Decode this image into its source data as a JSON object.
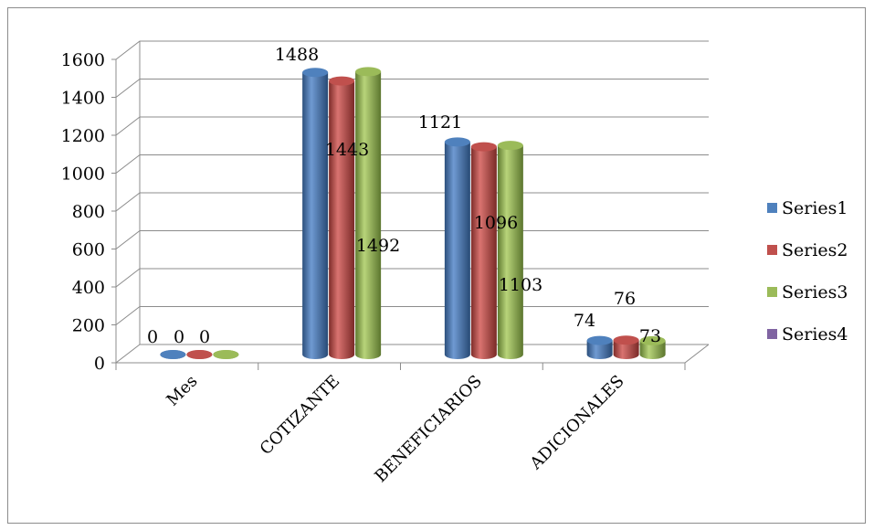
{
  "chart_data": {
    "type": "bar",
    "title": "",
    "xlabel": "",
    "ylabel": "",
    "categories": [
      "Mes",
      "COTIZANTE",
      "BENEFICIARIOS",
      "ADICIONALES"
    ],
    "series": [
      {
        "name": "Series1",
        "color": "#4f81bd",
        "values": [
          0,
          1488,
          1121,
          74
        ],
        "labels": [
          "0",
          "1488",
          "1121",
          "74"
        ]
      },
      {
        "name": "Series2",
        "color": "#c0504d",
        "values": [
          0,
          1443,
          1096,
          76
        ],
        "labels": [
          "0",
          "1443",
          "1096",
          "76"
        ]
      },
      {
        "name": "Series3",
        "color": "#9bbb59",
        "values": [
          0,
          1492,
          1103,
          73
        ],
        "labels": [
          "0",
          "1492",
          "1103",
          "73"
        ]
      },
      {
        "name": "Series4",
        "color": "#8064a2",
        "values": [
          null,
          null,
          null,
          null
        ],
        "labels": []
      }
    ],
    "ylim": [
      0,
      1600
    ],
    "yticks": [
      0,
      200,
      400,
      600,
      800,
      1000,
      1200,
      1400,
      1600
    ],
    "grid": true,
    "legend": "right",
    "style": "3d-cylinder"
  }
}
